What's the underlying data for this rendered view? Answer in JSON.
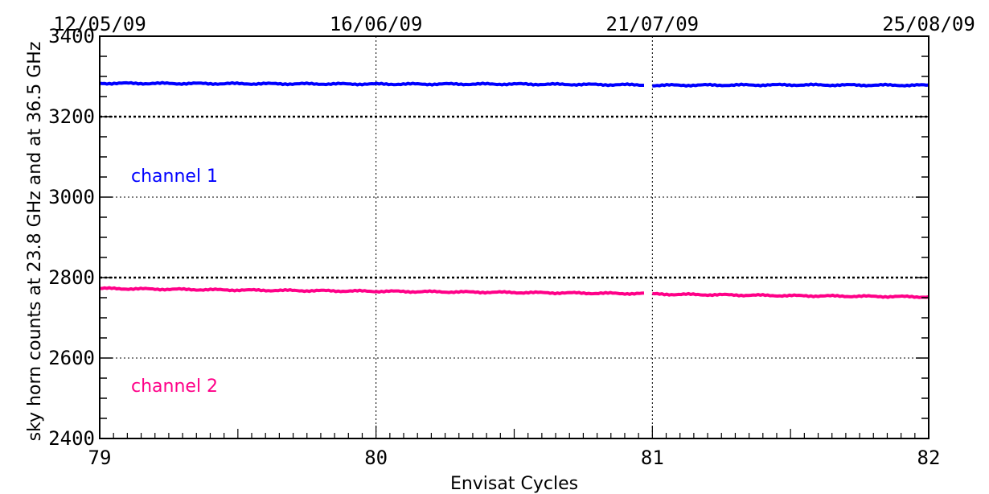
{
  "chart_data": {
    "type": "line",
    "xlabel": "Envisat Cycles",
    "ylabel": "sky horn counts at 23.8 GHz and at 36.5 GHz",
    "xlim": [
      79,
      82
    ],
    "ylim": [
      2400,
      3400
    ],
    "x_ticks": [
      "79",
      "80",
      "81",
      "82"
    ],
    "y_ticks": [
      "2400",
      "2600",
      "2800",
      "3000",
      "3200",
      "3400"
    ],
    "top_axis_labels": [
      {
        "x": 79,
        "label": "12/05/09"
      },
      {
        "x": 80,
        "label": "16/06/09"
      },
      {
        "x": 81,
        "label": "21/07/09"
      },
      {
        "x": 82,
        "label": "25/08/09"
      }
    ],
    "grid": {
      "vertical_dotted_at": [
        80,
        81
      ],
      "horizontal_dotted_at": [
        2600,
        3000
      ],
      "horizontal_bold_dotted_at": [
        2800,
        3200
      ]
    },
    "series": [
      {
        "name": "channel 1",
        "color": "#0000ff",
        "segments": [
          {
            "x": [
              79.0,
              79.5,
              80.0,
              80.5,
              80.97
            ],
            "y": [
              3283,
              3282,
              3281,
              3281,
              3279
            ]
          },
          {
            "x": [
              81.0,
              81.5,
              82.0
            ],
            "y": [
              3278,
              3279,
              3278
            ]
          }
        ]
      },
      {
        "name": "channel 2",
        "color": "#ff0088",
        "segments": [
          {
            "x": [
              79.0,
              79.5,
              80.0,
              80.5,
              80.97
            ],
            "y": [
              2773,
              2769,
              2766,
              2763,
              2760
            ]
          },
          {
            "x": [
              81.0,
              81.5,
              82.0
            ],
            "y": [
              2759,
              2755,
              2752
            ]
          }
        ]
      }
    ],
    "annotations": [
      {
        "text": "channel 1",
        "color": "#0000ff"
      },
      {
        "text": "channel 2",
        "color": "#ff0088"
      }
    ]
  }
}
